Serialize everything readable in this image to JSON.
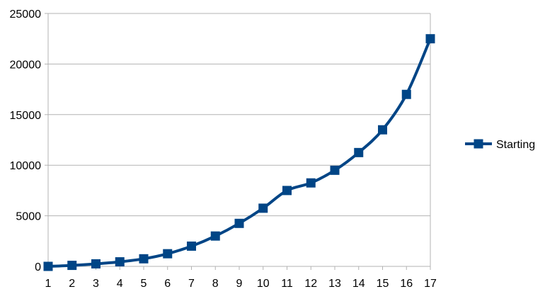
{
  "chart_data": {
    "type": "line",
    "title": "",
    "xlabel": "",
    "ylabel": "",
    "categories": [
      "1",
      "2",
      "3",
      "4",
      "5",
      "6",
      "7",
      "8",
      "9",
      "10",
      "11",
      "12",
      "13",
      "14",
      "15",
      "16",
      "17"
    ],
    "ylim": [
      0,
      25000
    ],
    "yticks": [
      0,
      5000,
      10000,
      15000,
      20000,
      25000
    ],
    "grid": true,
    "legend_position": "right",
    "series": [
      {
        "name": "Starting",
        "color": "#004586",
        "marker": "square",
        "smooth": true,
        "values": [
          0,
          100,
          250,
          450,
          750,
          1250,
          2000,
          3000,
          4250,
          5750,
          7500,
          8250,
          9500,
          11250,
          13500,
          17000,
          22500
        ]
      }
    ]
  }
}
